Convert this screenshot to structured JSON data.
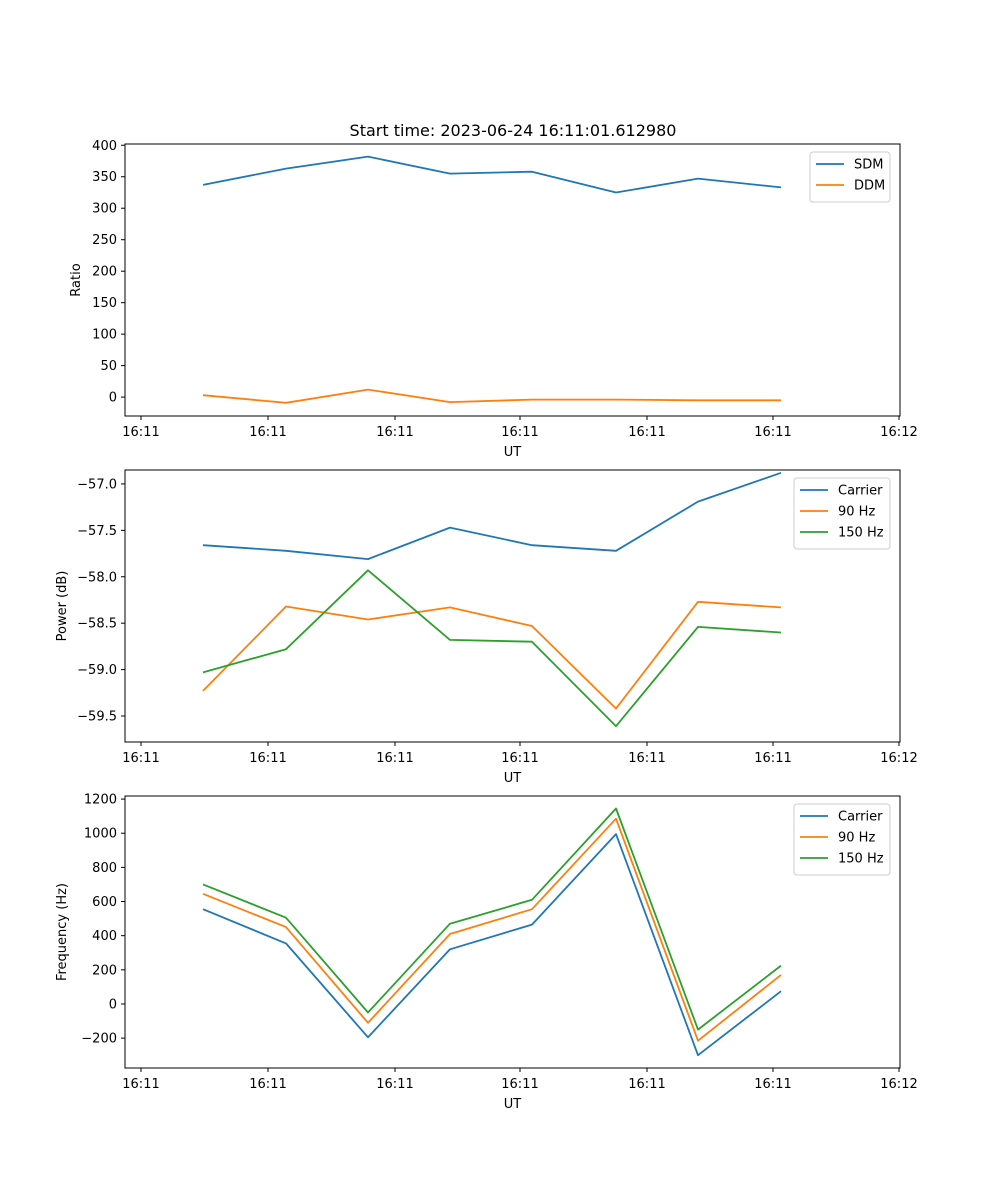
{
  "figure_title": "Start time: 2023-06-24 16:11:01.612980",
  "colors": {
    "blue": "#1f77b4",
    "orange": "#ff7f0e",
    "green": "#2ca02c"
  },
  "chart_data": [
    {
      "type": "line",
      "title": "Start time: 2023-06-24 16:11:01.612980",
      "xlabel": "UT",
      "ylabel": "Ratio",
      "x": [
        "16:11",
        "16:11",
        "16:11",
        "16:11",
        "16:11",
        "16:11",
        "16:11",
        "16:11"
      ],
      "x_tick_labels": [
        "16:11",
        "16:11",
        "16:11",
        "16:11",
        "16:11",
        "16:11",
        "16:12"
      ],
      "y_ticks": [
        0,
        50,
        100,
        150,
        200,
        250,
        300,
        350,
        400
      ],
      "ylim": [
        -30,
        402
      ],
      "grid": false,
      "legend_position": "top-right",
      "series": [
        {
          "name": "SDM",
          "color": "#1f77b4",
          "values": [
            337,
            363,
            382,
            355,
            358,
            325,
            347,
            333
          ]
        },
        {
          "name": "DDM",
          "color": "#ff7f0e",
          "values": [
            3,
            -9,
            12,
            -8,
            -4,
            -4,
            -5,
            -5
          ]
        }
      ]
    },
    {
      "type": "line",
      "title": "",
      "xlabel": "UT",
      "ylabel": "Power (dB)",
      "x": [
        "16:11",
        "16:11",
        "16:11",
        "16:11",
        "16:11",
        "16:11",
        "16:11",
        "16:11"
      ],
      "x_tick_labels": [
        "16:11",
        "16:11",
        "16:11",
        "16:11",
        "16:11",
        "16:11",
        "16:12"
      ],
      "y_ticks": [
        -59.5,
        -59.0,
        -58.5,
        -58.0,
        -57.5,
        -57.0
      ],
      "y_tick_labels": [
        "−59.5",
        "−59.0",
        "−58.5",
        "−58.0",
        "−57.5",
        "−57.0"
      ],
      "ylim": [
        -59.78,
        -56.85
      ],
      "grid": false,
      "legend_position": "top-right",
      "series": [
        {
          "name": "Carrier",
          "color": "#1f77b4",
          "values": [
            -57.66,
            -57.72,
            -57.81,
            -57.47,
            -57.66,
            -57.72,
            -57.19,
            -56.88
          ]
        },
        {
          "name": "90 Hz",
          "color": "#ff7f0e",
          "values": [
            -59.23,
            -58.32,
            -58.46,
            -58.33,
            -58.53,
            -59.42,
            -58.27,
            -58.33
          ]
        },
        {
          "name": "150 Hz",
          "color": "#2ca02c",
          "values": [
            -59.03,
            -58.78,
            -57.93,
            -58.68,
            -58.7,
            -59.61,
            -58.54,
            -58.6
          ]
        }
      ]
    },
    {
      "type": "line",
      "title": "",
      "xlabel": "UT",
      "ylabel": "Frequency (Hz)",
      "x": [
        "16:11",
        "16:11",
        "16:11",
        "16:11",
        "16:11",
        "16:11",
        "16:11",
        "16:11"
      ],
      "x_tick_labels": [
        "16:11",
        "16:11",
        "16:11",
        "16:11",
        "16:11",
        "16:11",
        "16:12"
      ],
      "y_ticks": [
        -200,
        0,
        200,
        400,
        600,
        800,
        1000,
        1200
      ],
      "y_tick_labels": [
        "−200",
        "0",
        "200",
        "400",
        "600",
        "800",
        "1000",
        "1200"
      ],
      "ylim": [
        -375,
        1218
      ],
      "grid": false,
      "legend_position": "top-right",
      "series": [
        {
          "name": "Carrier",
          "color": "#1f77b4",
          "values": [
            555,
            355,
            -195,
            320,
            465,
            995,
            -300,
            75
          ]
        },
        {
          "name": "90 Hz",
          "color": "#ff7f0e",
          "values": [
            645,
            450,
            -110,
            410,
            555,
            1085,
            -215,
            170
          ]
        },
        {
          "name": "150 Hz",
          "color": "#2ca02c",
          "values": [
            700,
            505,
            -50,
            470,
            610,
            1145,
            -150,
            225
          ]
        }
      ]
    }
  ]
}
